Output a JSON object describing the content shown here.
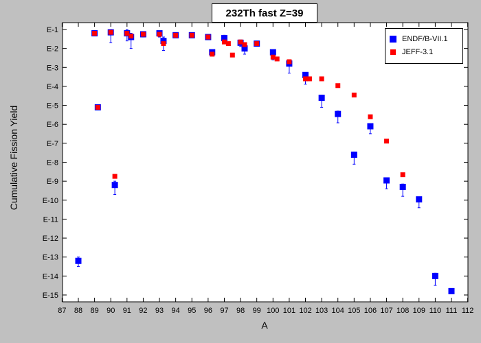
{
  "chart_data": {
    "type": "scatter",
    "title": "232Th fast Z=39",
    "xlabel": "A",
    "ylabel": "Cumulative Fission Yield",
    "xlim": [
      87,
      112
    ],
    "x_ticks": [
      87,
      88,
      89,
      90,
      91,
      92,
      93,
      94,
      95,
      96,
      97,
      98,
      99,
      100,
      101,
      102,
      103,
      104,
      105,
      106,
      107,
      108,
      109,
      110,
      111,
      112
    ],
    "y_ticks": [
      "E-1",
      "E-2",
      "E-3",
      "E-4",
      "E-5",
      "E-6",
      "E-7",
      "E-8",
      "E-9",
      "E-10",
      "E-11",
      "E-12",
      "E-13",
      "E-14",
      "E-15"
    ],
    "y_scale": "log",
    "ylim": [
      "1e-15",
      "1e-1"
    ],
    "grid": false,
    "legend_position": "top-right",
    "series": [
      {
        "name": "ENDF/B-VII.1",
        "color": "#0000ff",
        "marker": "square",
        "points": [
          {
            "x": 88,
            "y": 6.3e-14,
            "lo": 3.2e-14,
            "hi": 1e-13
          },
          {
            "x": 89,
            "y": 0.063,
            "lo": 0.05,
            "hi": 0.079
          },
          {
            "x": 89.2,
            "y": 7.9e-06,
            "lo": 6.3e-06,
            "hi": 1e-05
          },
          {
            "x": 90,
            "y": 0.071,
            "lo": 0.02,
            "hi": 0.1
          },
          {
            "x": 90.25,
            "y": 6.3e-10,
            "lo": 2e-10,
            "hi": 1e-09
          },
          {
            "x": 91,
            "y": 0.063,
            "lo": 0.025,
            "hi": 0.1
          },
          {
            "x": 91.25,
            "y": 0.04,
            "lo": 0.01,
            "hi": 0.063
          },
          {
            "x": 92,
            "y": 0.056,
            "lo": 0.04,
            "hi": 0.071
          },
          {
            "x": 93,
            "y": 0.063,
            "lo": 0.04,
            "hi": 0.079
          },
          {
            "x": 93.25,
            "y": 0.025,
            "lo": 0.0079,
            "hi": 0.04
          },
          {
            "x": 94,
            "y": 0.05,
            "lo": 0.04,
            "hi": 0.063
          },
          {
            "x": 95,
            "y": 0.05,
            "lo": 0.04,
            "hi": 0.063
          },
          {
            "x": 96,
            "y": 0.04,
            "lo": 0.032,
            "hi": 0.05
          },
          {
            "x": 96.25,
            "y": 0.0063,
            "lo": 0.004,
            "hi": 0.0079
          },
          {
            "x": 97,
            "y": 0.035,
            "lo": 0.02,
            "hi": 0.05
          },
          {
            "x": 98,
            "y": 0.02,
            "lo": 0.0126,
            "hi": 0.028
          },
          {
            "x": 98.25,
            "y": 0.01,
            "lo": 0.005,
            "hi": 0.0126
          },
          {
            "x": 99,
            "y": 0.018,
            "lo": 0.014,
            "hi": 0.022
          },
          {
            "x": 100,
            "y": 0.0063,
            "lo": 0.0025,
            "hi": 0.0079
          },
          {
            "x": 101,
            "y": 0.0016,
            "lo": 0.0005,
            "hi": 0.002
          },
          {
            "x": 102,
            "y": 0.0004,
            "lo": 0.00013,
            "hi": 0.0005
          },
          {
            "x": 103,
            "y": 2.5e-05,
            "lo": 7.9e-06,
            "hi": 3.5e-05
          },
          {
            "x": 104,
            "y": 3.5e-06,
            "lo": 1.2e-06,
            "hi": 5e-06
          },
          {
            "x": 105,
            "y": 2.5e-08,
            "lo": 7.9e-09,
            "hi": 3.5e-08
          },
          {
            "x": 106,
            "y": 7.9e-07,
            "lo": 3.2e-07,
            "hi": 1e-06
          },
          {
            "x": 107,
            "y": 1.1e-09,
            "lo": 4e-10,
            "hi": 1.4e-09
          },
          {
            "x": 108,
            "y": 5e-10,
            "lo": 1.6e-10,
            "hi": 7.1e-10
          },
          {
            "x": 109,
            "y": 1.1e-10,
            "lo": 4e-11,
            "hi": 1.4e-10
          },
          {
            "x": 110,
            "y": 1e-14,
            "lo": 3.2e-15,
            "hi": 1.4e-14
          },
          {
            "x": 111,
            "y": 1.6e-15,
            "lo": 1.3e-15,
            "hi": 2e-15
          }
        ]
      },
      {
        "name": "JEFF-3.1",
        "color": "#ff0000",
        "marker": "square",
        "points": [
          {
            "x": 89,
            "y": 0.063
          },
          {
            "x": 89.2,
            "y": 7.9e-06
          },
          {
            "x": 90,
            "y": 0.071
          },
          {
            "x": 90.25,
            "y": 1.8e-09
          },
          {
            "x": 91,
            "y": 0.063
          },
          {
            "x": 91.25,
            "y": 0.045
          },
          {
            "x": 92,
            "y": 0.056
          },
          {
            "x": 93,
            "y": 0.056
          },
          {
            "x": 93.25,
            "y": 0.018
          },
          {
            "x": 94,
            "y": 0.05
          },
          {
            "x": 95,
            "y": 0.05
          },
          {
            "x": 96,
            "y": 0.04
          },
          {
            "x": 96.25,
            "y": 0.005
          },
          {
            "x": 97,
            "y": 0.022
          },
          {
            "x": 97.25,
            "y": 0.018
          },
          {
            "x": 97.5,
            "y": 0.0045
          },
          {
            "x": 98,
            "y": 0.022
          },
          {
            "x": 98.25,
            "y": 0.016
          },
          {
            "x": 99,
            "y": 0.018
          },
          {
            "x": 100,
            "y": 0.0035
          },
          {
            "x": 100.25,
            "y": 0.0028
          },
          {
            "x": 101,
            "y": 0.002
          },
          {
            "x": 102,
            "y": 0.00025
          },
          {
            "x": 102.25,
            "y": 0.00025
          },
          {
            "x": 103,
            "y": 0.00025
          },
          {
            "x": 104,
            "y": 0.00011
          },
          {
            "x": 105,
            "y": 3.5e-05
          },
          {
            "x": 106,
            "y": 2.5e-06
          },
          {
            "x": 107,
            "y": 1.3e-07
          },
          {
            "x": 108,
            "y": 2.2e-09
          }
        ]
      }
    ]
  }
}
